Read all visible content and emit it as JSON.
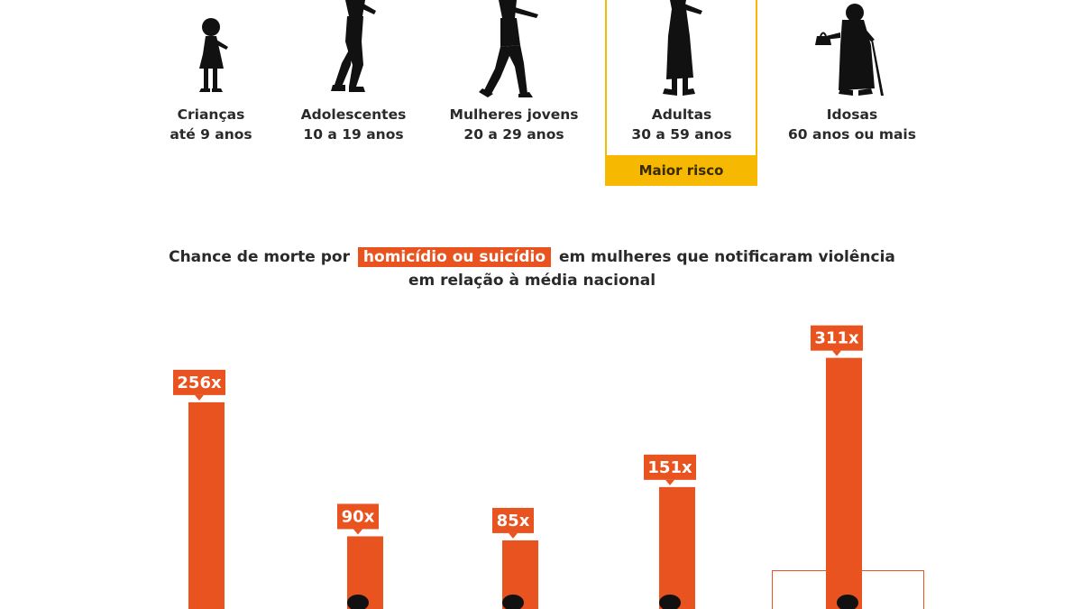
{
  "groups": [
    {
      "name": "Crianças",
      "range": "até 9 anos"
    },
    {
      "name": "Adolescentes",
      "range": "10 a 19 anos"
    },
    {
      "name": "Mulheres jovens",
      "range": "20 a 29 anos"
    },
    {
      "name": "Adultas",
      "range": "30 a 59 anos"
    },
    {
      "name": "Idosas",
      "range": "60 anos ou mais"
    }
  ],
  "risk_label": "Maior risco",
  "title": {
    "before": "Chance de morte por",
    "highlight": "homicídio ou suicídio",
    "after": "em mulheres que notificaram violência",
    "line2": "em relação à média nacional"
  },
  "colors": {
    "bar": "#e8531f",
    "highlight": "#f6b800",
    "silhouette": "#111111"
  },
  "chart_data": {
    "type": "bar",
    "categories": [
      "Crianças",
      "Adolescentes",
      "Mulheres jovens",
      "Adultas",
      "Idosas"
    ],
    "values": [
      256,
      90,
      85,
      151,
      311
    ],
    "labels": [
      "256x",
      "90x",
      "85x",
      "151x",
      "311x"
    ],
    "ylim": [
      0,
      330
    ]
  }
}
